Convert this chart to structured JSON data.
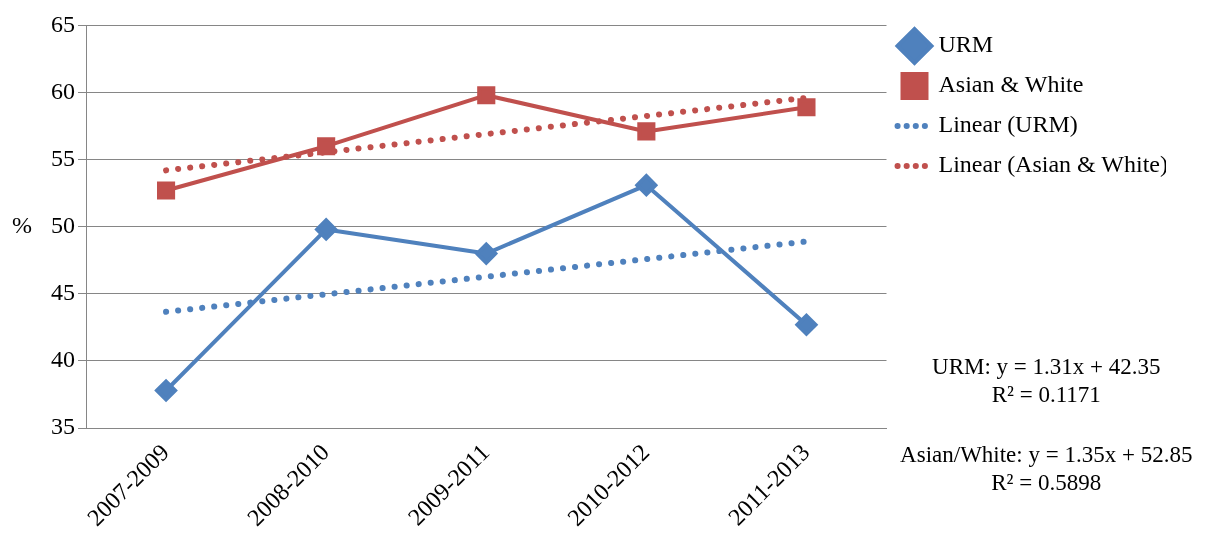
{
  "chart_data": {
    "type": "line",
    "ylabel": "%",
    "categories": [
      "2007-2009",
      "2008-2010",
      "2009-2011",
      "2010-2012",
      "2011-2013"
    ],
    "series": [
      {
        "name": "URM",
        "color": "#4f81bd",
        "values": [
          37.8,
          49.8,
          48.0,
          53.1,
          42.7
        ],
        "marker": "diamond",
        "line_style": "solid"
      },
      {
        "name": "Asian & White",
        "color": "#c0504d",
        "values": [
          52.7,
          56.0,
          59.8,
          57.1,
          58.9
        ],
        "marker": "square",
        "line_style": "solid"
      },
      {
        "name": "Linear (URM)",
        "color": "#4f81bd",
        "values": [
          43.66,
          44.97,
          46.28,
          47.59,
          48.9
        ],
        "marker": "none",
        "line_style": "dotted"
      },
      {
        "name": "Linear (Asian & White)",
        "color": "#c0504d",
        "values": [
          54.2,
          55.55,
          56.9,
          58.25,
          59.6
        ],
        "marker": "none",
        "line_style": "dotted"
      }
    ],
    "ylim": [
      35,
      65
    ],
    "yticks": [
      35,
      40,
      45,
      50,
      55,
      60,
      65
    ],
    "grid": "y",
    "legend": "right",
    "annotations": [
      "URM: y = 1.31x + 42.35",
      "R² = 0.1171",
      "Asian/White: y = 1.35x + 52.85",
      "R² = 0.5898"
    ]
  }
}
